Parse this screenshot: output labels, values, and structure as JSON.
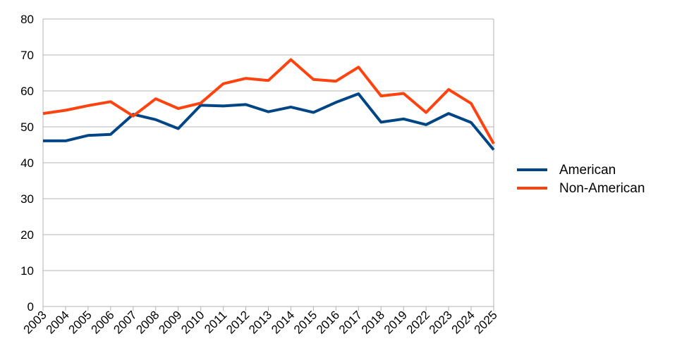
{
  "chart_data": {
    "type": "line",
    "title": "",
    "xlabel": "",
    "ylabel": "",
    "categories": [
      "2003",
      "2004",
      "2005",
      "2006",
      "2007",
      "2008",
      "2009",
      "2010",
      "2011",
      "2012",
      "2013",
      "2014",
      "2015",
      "2016",
      "2017",
      "2018",
      "2019",
      "2022",
      "2023",
      "2024",
      "2025"
    ],
    "ylim": [
      0,
      80
    ],
    "yticks": [
      0,
      10,
      20,
      30,
      40,
      50,
      60,
      70,
      80
    ],
    "grid": true,
    "legend_position": "right",
    "series": [
      {
        "name": "American",
        "color": "#004586",
        "values": [
          46.1,
          46.1,
          47.6,
          47.9,
          53.5,
          52.0,
          49.5,
          56.0,
          55.8,
          56.2,
          54.2,
          55.5,
          54.0,
          56.8,
          59.2,
          51.3,
          52.2,
          50.6,
          53.7,
          51.2,
          43.6
        ]
      },
      {
        "name": "Non-American",
        "color": "#ff420e",
        "values": [
          53.7,
          54.6,
          55.9,
          57.0,
          53.0,
          57.8,
          55.1,
          56.6,
          62.0,
          63.5,
          62.9,
          68.7,
          63.2,
          62.7,
          66.6,
          58.6,
          59.3,
          54.0,
          60.4,
          56.5,
          45.3
        ]
      }
    ]
  }
}
